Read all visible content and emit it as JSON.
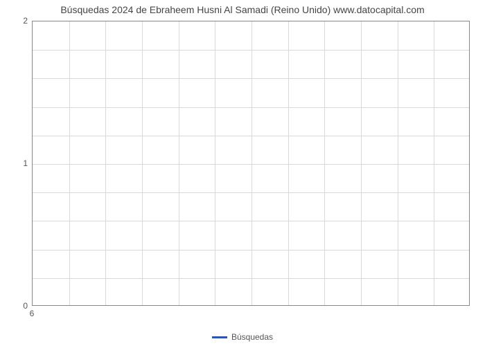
{
  "chart": {
    "type": "line",
    "title": "Búsquedas 2024 de Ebraheem Husni Al Samadi (Reino Unido) www.datocapital.com",
    "title_fontsize": 14,
    "title_color": "#444444",
    "background_color": "#ffffff",
    "plot_border_color": "#888888",
    "grid_color": "#d9d9d9",
    "axis_label_color": "#555555",
    "axis_label_fontsize": 12,
    "y": {
      "lim": [
        0,
        2
      ],
      "major_ticks": [
        0,
        1,
        2
      ],
      "minor_tick_step": 0.2
    },
    "x": {
      "lim": [
        6,
        6
      ],
      "ticks": [
        6
      ],
      "col_count": 12
    },
    "series": [
      {
        "name": "Búsquedas",
        "color": "#2956b2",
        "line_width": 2,
        "data": []
      }
    ],
    "legend": {
      "position": "bottom-center",
      "items": [
        {
          "label": "Búsquedas",
          "color": "#2956b2"
        }
      ]
    }
  }
}
